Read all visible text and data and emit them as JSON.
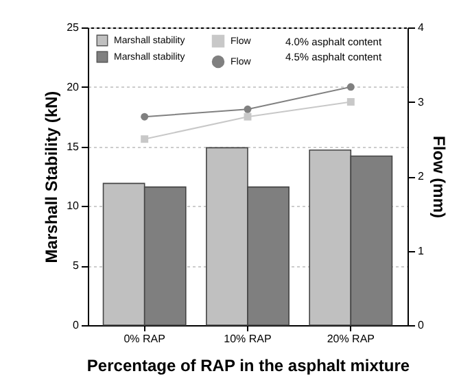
{
  "chart_data": {
    "type": "bar",
    "xlabel": "Percentage of RAP in the asphalt mixture",
    "ylabel": "Marshall Stability (kN)",
    "y2label": "Flow (mm)",
    "categories": [
      "0% RAP",
      "10% RAP",
      "20% RAP"
    ],
    "series": [
      {
        "name": "Marshall stability",
        "color": "#c0c0c0",
        "values": [
          11.9,
          14.9,
          14.7
        ]
      },
      {
        "name": "Marshall stability",
        "color": "#7f7f7f",
        "values": [
          11.6,
          11.6,
          14.2
        ]
      },
      {
        "type": "line",
        "axis": "y2",
        "marker": "square",
        "name": "Flow",
        "color": "#c8c8c8",
        "values": [
          2.5,
          2.8,
          3.0
        ]
      },
      {
        "type": "line",
        "axis": "y2",
        "marker": "circle",
        "name": "Flow",
        "color": "#808080",
        "values": [
          2.8,
          2.9,
          3.2
        ]
      }
    ],
    "annotations": [
      "4.0% asphalt content",
      "4.5% asphalt content"
    ],
    "ylim": [
      0,
      25
    ],
    "yticks": [
      0,
      5,
      10,
      15,
      20,
      25
    ],
    "y2lim": [
      0,
      4
    ],
    "y2ticks": [
      0,
      1,
      2,
      3,
      4
    ],
    "grid": "y",
    "legend": "top left"
  }
}
